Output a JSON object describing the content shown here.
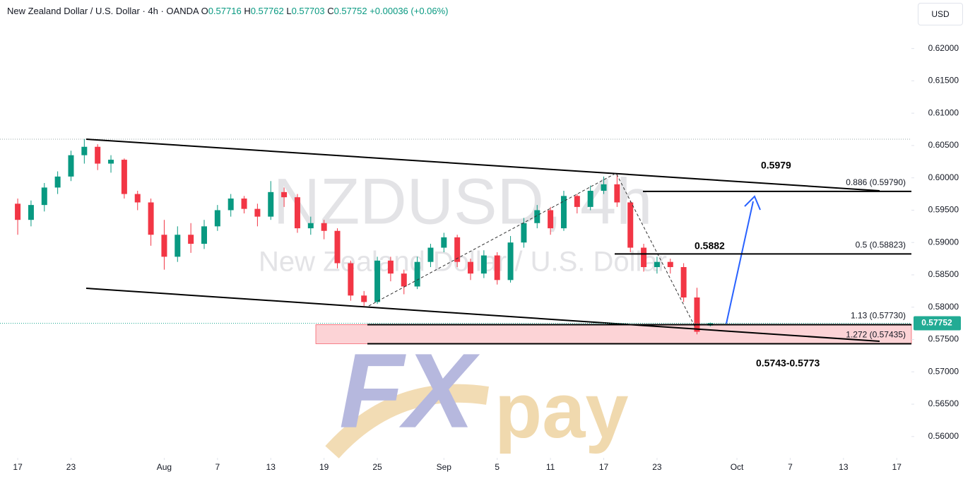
{
  "chart_data": {
    "type": "candlestick",
    "header": {
      "symbol": "New Zealand Dollar / U.S. Dollar · 4h · OANDA",
      "o_label": "O",
      "o": "0.57716",
      "h_label": "H",
      "h": "0.57762",
      "l_label": "L",
      "l": "0.57703",
      "c_label": "C",
      "c": "0.57752",
      "change": "+0.00036 (+0.06%)"
    },
    "currency": "USD",
    "watermark": {
      "ticker": "NZDUSD, 4h",
      "name": "New Zealand Dollar / U.S. Dollar"
    },
    "logo": {
      "fx": "FX",
      "pay": "pay"
    },
    "x": [
      0,
      1,
      2,
      3,
      4,
      5,
      6,
      7,
      8,
      9,
      10,
      11,
      12,
      13,
      14,
      15,
      16,
      17,
      18,
      19,
      20,
      21,
      22,
      23,
      24,
      25,
      26,
      27,
      28,
      29,
      30,
      31,
      32,
      33,
      34,
      35,
      36,
      37,
      38,
      39,
      40,
      41,
      42,
      43,
      44,
      45,
      46,
      47,
      48,
      49,
      50,
      51,
      52
    ],
    "open": [
      0.596,
      0.5935,
      0.5958,
      0.5985,
      0.6002,
      0.6035,
      0.6048,
      0.6022,
      0.6028,
      0.5975,
      0.5962,
      0.5912,
      0.5878,
      0.5912,
      0.5898,
      0.5925,
      0.595,
      0.5968,
      0.5952,
      0.594,
      0.5978,
      0.597,
      0.5922,
      0.593,
      0.5918,
      0.5868,
      0.5818,
      0.5808,
      0.5872,
      0.5852,
      0.5832,
      0.587,
      0.5892,
      0.5908,
      0.587,
      0.5852,
      0.588,
      0.5842,
      0.59,
      0.593,
      0.595,
      0.5922,
      0.5972,
      0.5955,
      0.598,
      0.599,
      0.5962,
      0.5892,
      0.5862,
      0.587,
      0.5862,
      0.5815,
      0.57716
    ],
    "high": [
      0.5968,
      0.5965,
      0.5992,
      0.601,
      0.6042,
      0.606,
      0.6052,
      0.6035,
      0.603,
      0.598,
      0.5968,
      0.5935,
      0.5925,
      0.593,
      0.5935,
      0.5958,
      0.5975,
      0.5972,
      0.596,
      0.5995,
      0.5985,
      0.5975,
      0.594,
      0.5935,
      0.5922,
      0.5872,
      0.5825,
      0.5878,
      0.5878,
      0.5858,
      0.5878,
      0.5898,
      0.5915,
      0.5912,
      0.5875,
      0.5888,
      0.5885,
      0.591,
      0.5938,
      0.5958,
      0.5955,
      0.598,
      0.5975,
      0.5988,
      0.6002,
      0.6007,
      0.5965,
      0.5898,
      0.5878,
      0.5875,
      0.5868,
      0.583,
      0.57762
    ],
    "low": [
      0.5912,
      0.5925,
      0.5948,
      0.5975,
      0.5995,
      0.6022,
      0.6012,
      0.6008,
      0.5968,
      0.595,
      0.5895,
      0.5858,
      0.587,
      0.5884,
      0.589,
      0.5918,
      0.594,
      0.5945,
      0.5925,
      0.5935,
      0.5955,
      0.5915,
      0.5912,
      0.5905,
      0.586,
      0.581,
      0.5802,
      0.5805,
      0.584,
      0.582,
      0.5828,
      0.5862,
      0.5885,
      0.5862,
      0.5842,
      0.5845,
      0.5835,
      0.5838,
      0.5892,
      0.5922,
      0.5912,
      0.5918,
      0.5945,
      0.595,
      0.5975,
      0.5955,
      0.5885,
      0.5855,
      0.5852,
      0.5852,
      0.5808,
      0.5758,
      0.57703
    ],
    "close": [
      0.5935,
      0.5958,
      0.5985,
      0.6002,
      0.6035,
      0.6048,
      0.6022,
      0.6028,
      0.5975,
      0.5962,
      0.5912,
      0.5878,
      0.5912,
      0.5898,
      0.5925,
      0.595,
      0.5968,
      0.5952,
      0.594,
      0.5978,
      0.597,
      0.5922,
      0.593,
      0.5918,
      0.5868,
      0.5818,
      0.5808,
      0.5872,
      0.5852,
      0.5832,
      0.587,
      0.5892,
      0.5908,
      0.587,
      0.5852,
      0.588,
      0.5842,
      0.59,
      0.593,
      0.595,
      0.5922,
      0.5972,
      0.5955,
      0.598,
      0.599,
      0.5962,
      0.5892,
      0.5862,
      0.587,
      0.5862,
      0.5815,
      0.5762,
      0.57752
    ],
    "up_color": "#089981",
    "down_color": "#f23645",
    "xlim": [
      -1.33,
      67.1
    ],
    "xticks": [
      {
        "value": 0,
        "label": "17"
      },
      {
        "value": 4,
        "label": "23"
      },
      {
        "value": 11,
        "label": "Aug"
      },
      {
        "value": 15,
        "label": "7"
      },
      {
        "value": 19,
        "label": "13"
      },
      {
        "value": 23,
        "label": "19"
      },
      {
        "value": 27,
        "label": "25"
      },
      {
        "value": 32,
        "label": "Sep"
      },
      {
        "value": 36,
        "label": "5"
      },
      {
        "value": 40,
        "label": "11"
      },
      {
        "value": 44,
        "label": "17"
      },
      {
        "value": 48,
        "label": "23"
      },
      {
        "value": 54,
        "label": "Oct"
      },
      {
        "value": 58,
        "label": "7"
      },
      {
        "value": 62,
        "label": "13"
      },
      {
        "value": 66,
        "label": "17"
      }
    ],
    "ylim": [
      0.5567,
      0.6275
    ],
    "yticks": [
      {
        "value": 0.56,
        "label": "0.56000"
      },
      {
        "value": 0.565,
        "label": "0.56500"
      },
      {
        "value": 0.57,
        "label": "0.57000"
      },
      {
        "value": 0.575,
        "label": "0.57500"
      },
      {
        "value": 0.58,
        "label": "0.58000"
      },
      {
        "value": 0.585,
        "label": "0.58500"
      },
      {
        "value": 0.59,
        "label": "0.59000"
      },
      {
        "value": 0.595,
        "label": "0.59500"
      },
      {
        "value": 0.6,
        "label": "0.60000"
      },
      {
        "value": 0.605,
        "label": "0.60500"
      },
      {
        "value": 0.61,
        "label": "0.61000"
      },
      {
        "value": 0.615,
        "label": "0.61500"
      },
      {
        "value": 0.62,
        "label": "0.62000"
      }
    ],
    "last_price": {
      "value": 0.57752,
      "label": "0.57752",
      "color": "#22ab94"
    },
    "levels": [
      {
        "value": 0.5979,
        "label": "0.886 (0.59790)"
      },
      {
        "value": 0.58823,
        "label": "0.5 (0.58823)"
      },
      {
        "value": 0.5773,
        "label": "1.13 (0.57730)"
      },
      {
        "value": 0.57435,
        "label": "1.272 (0.57435)"
      }
    ],
    "annotations": [
      "0.5979",
      "0.5882",
      "0.5743-0.5773"
    ]
  }
}
